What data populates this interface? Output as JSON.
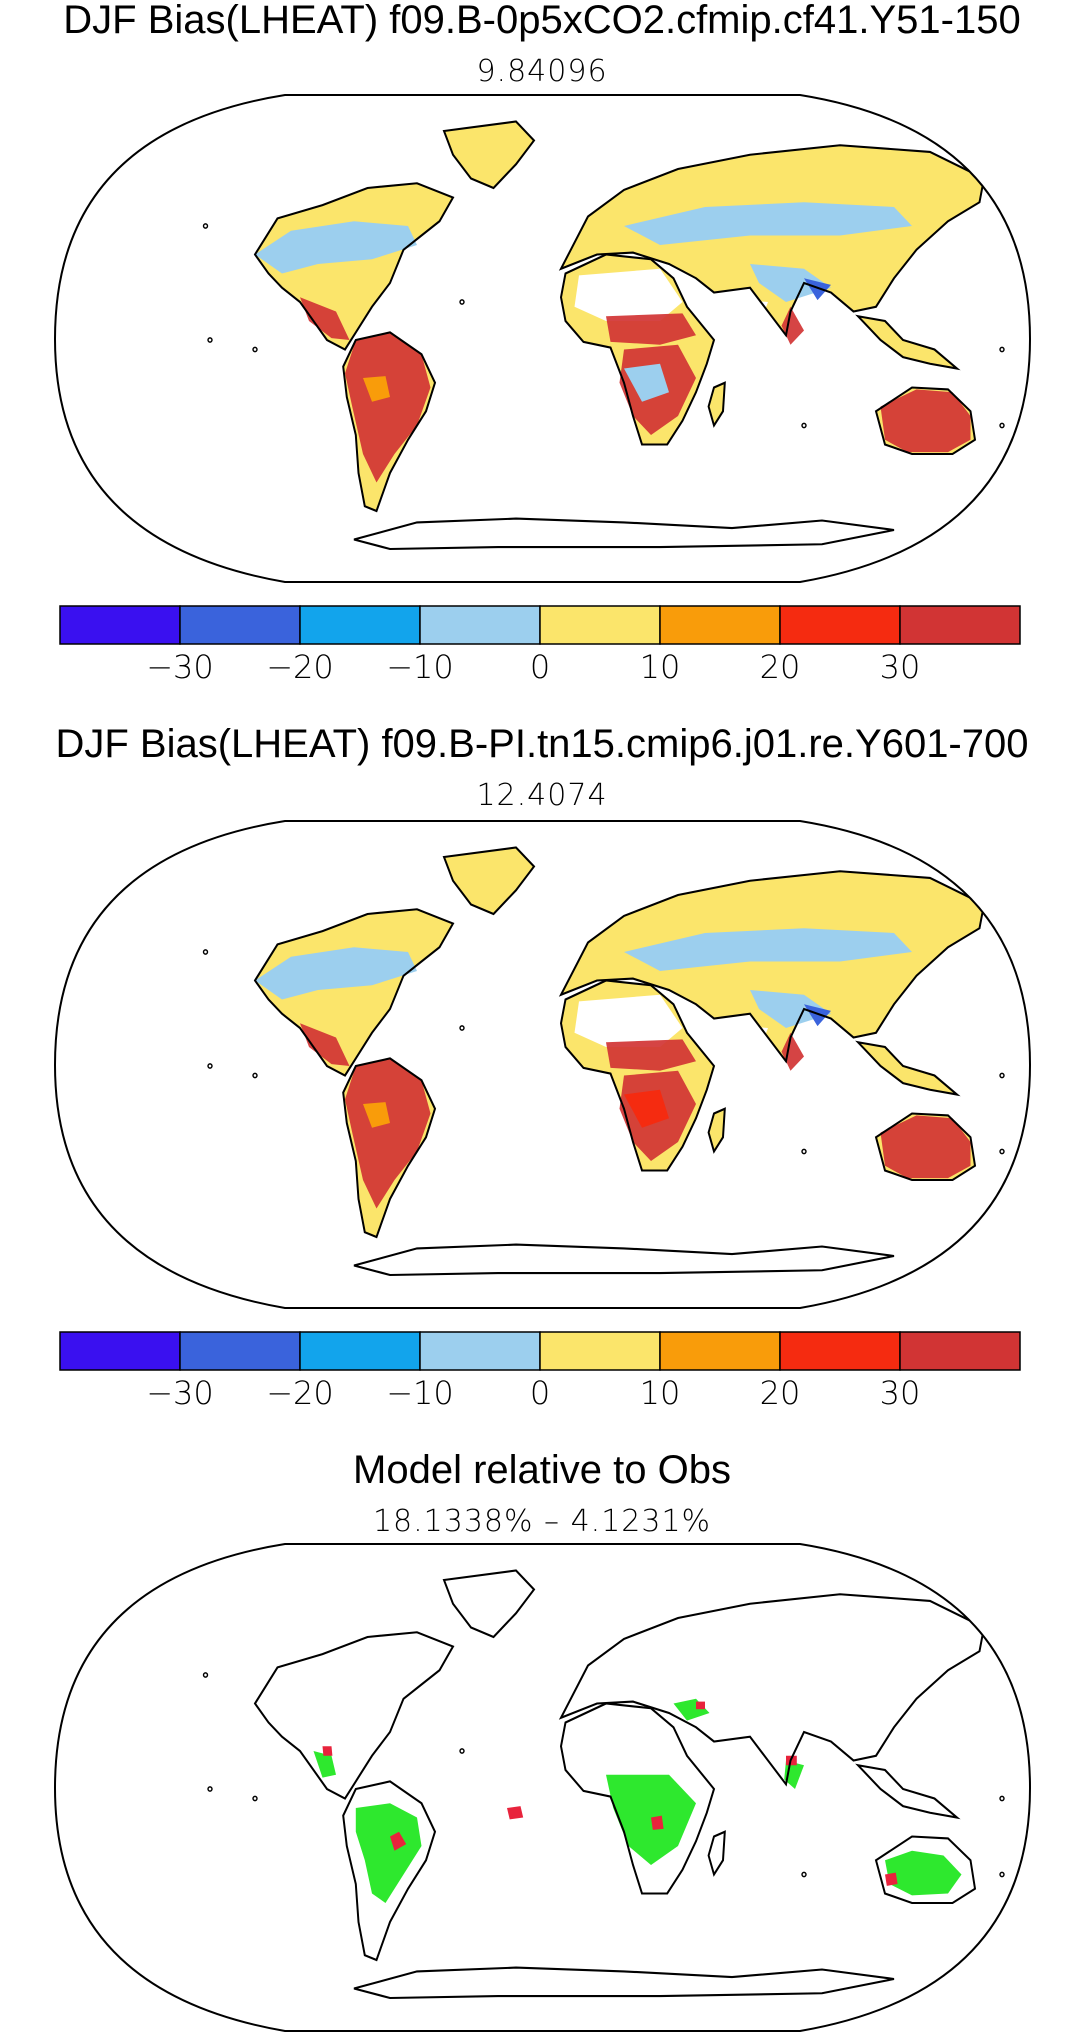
{
  "panels": [
    {
      "title": "DJF Bias(LHEAT) f09.B-0p5xCO2.cfmip.cf41.Y51-150",
      "subtitle": "9.84096"
    },
    {
      "title": "DJF Bias(LHEAT) f09.B-PI.tn15.cmip6.j01.re.Y601-700",
      "subtitle": "12.4074"
    },
    {
      "title": "Model relative to Obs",
      "subtitle": "18.1338% – 4.1231%"
    }
  ],
  "colorbar": {
    "colors": [
      "#3a10f0",
      "#3a63dc",
      "#12a4ec",
      "#9ccfee",
      "#fbe56b",
      "#f99c0a",
      "#f52b10",
      "#d13434"
    ],
    "tick_labels": [
      "−30",
      "−20",
      "−10",
      "0",
      "10",
      "20",
      "30"
    ]
  },
  "map_palette": {
    "land_outline": "#000000",
    "ratio_map_colors": [
      "#2ee82e",
      "#e8233c"
    ]
  }
}
